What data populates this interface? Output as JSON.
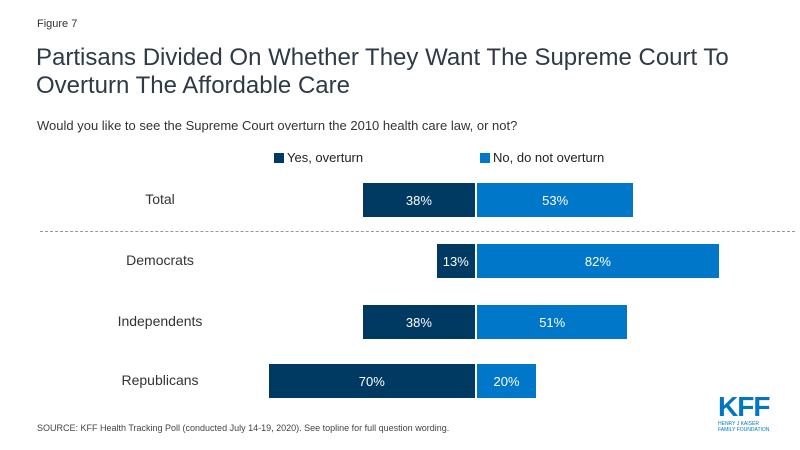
{
  "figure_label": "Figure 7",
  "title": "Partisans Divided On Whether They Want The Supreme Court To Overturn The Affordable Care",
  "subtitle": "Would you like to see the Supreme Court overturn the 2010 health care law, or not?",
  "source": "SOURCE: KFF Health Tracking Poll (conducted July 14-19, 2020). See topline for full question wording.",
  "logo": {
    "name": "KFF",
    "line1": "HENRY J KAISER",
    "line2": "FAMILY FOUNDATION"
  },
  "chart_data": {
    "type": "bar",
    "orientation": "horizontal-diverging",
    "title": "Partisans Divided On Whether They Want The Supreme Court To Overturn The Affordable Care",
    "subtitle": "Would you like to see the Supreme Court overturn the 2010 health care law, or not?",
    "categories": [
      "Total",
      "Democrats",
      "Independents",
      "Republicans"
    ],
    "series": [
      {
        "name": "Yes, overturn",
        "color": "#003a63",
        "values": [
          38,
          13,
          38,
          70
        ],
        "labels": [
          "38%",
          "13%",
          "38%",
          "70%"
        ]
      },
      {
        "name": "No, do not overturn",
        "color": "#0077c8",
        "values": [
          53,
          82,
          51,
          20
        ],
        "labels": [
          "53%",
          "82%",
          "51%",
          "20%"
        ]
      }
    ],
    "legend_position": "top",
    "separator_after": "Total",
    "unit": "%"
  }
}
